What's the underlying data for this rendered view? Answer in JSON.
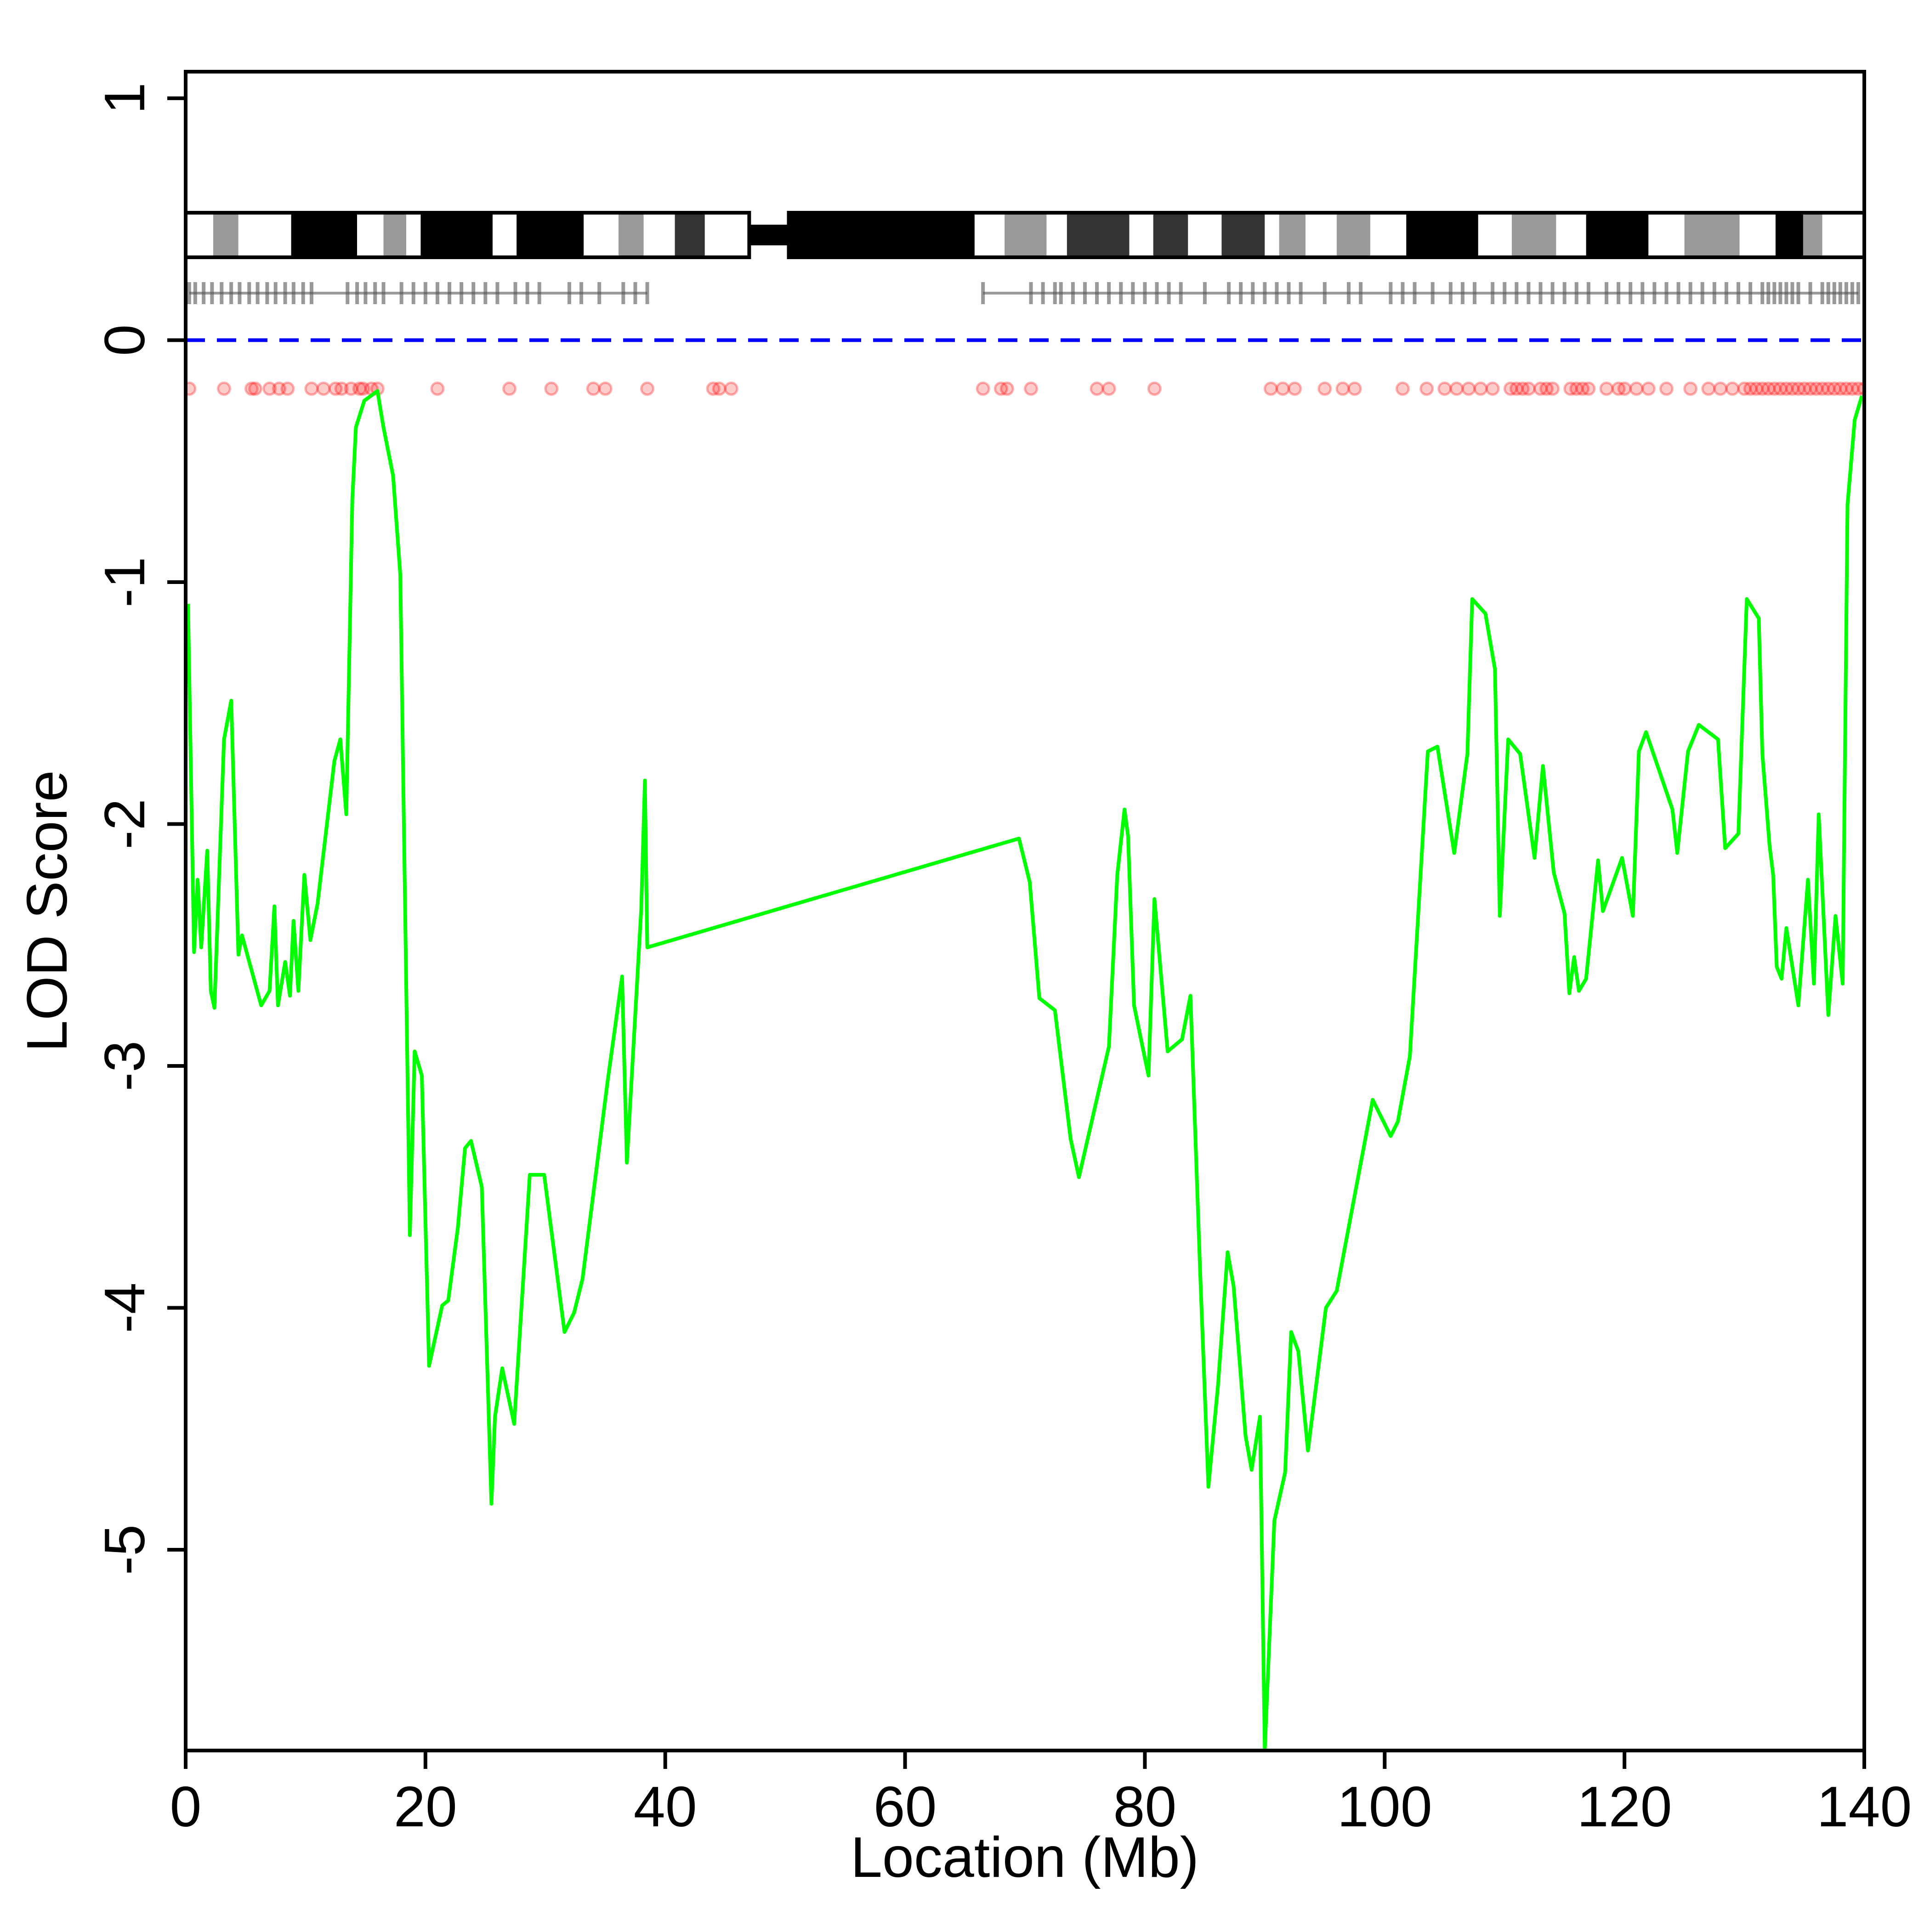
{
  "chart_data": {
    "type": "line",
    "x_label": "Location (Mb)",
    "y_label": "LOD Score",
    "xlim": [
      0,
      140
    ],
    "ylim": [
      -5.83,
      1.11
    ],
    "xticks": [
      0,
      20,
      40,
      60,
      80,
      100,
      120,
      140
    ],
    "yticks": [
      -5,
      -4,
      -3,
      -2,
      -1,
      0,
      1
    ],
    "hline": {
      "value": 0,
      "color": "#0000ff"
    },
    "series": [
      {
        "color": "#00ff00",
        "x": [
          0.2,
          0.7,
          1.0,
          1.3,
          1.8,
          2.1,
          2.4,
          3.2,
          3.8,
          4.4,
          4.7,
          6.3,
          7.0,
          7.4,
          7.7,
          8.3,
          8.7,
          9.0,
          9.4,
          9.9,
          10.4,
          11.0,
          12.4,
          12.9,
          13.4,
          13.9,
          14.2,
          14.9,
          16.0,
          16.5,
          17.3,
          17.9,
          18.7,
          19.1,
          19.7,
          20.3,
          21.4,
          21.9,
          22.7,
          23.3,
          23.8,
          24.7,
          25.5,
          25.8,
          26.4,
          27.4,
          28.7,
          29.9,
          31.6,
          32.4,
          33.1,
          35.2,
          36.4,
          36.8,
          38.0,
          38.3,
          38.5,
          69.5,
          70.4,
          71.2,
          72.5,
          73.8,
          74.5,
          77.0,
          77.7,
          78.3,
          78.6,
          79.1,
          80.3,
          80.8,
          81.9,
          83.1,
          83.8,
          84.6,
          85.3,
          86.1,
          86.9,
          87.4,
          88.4,
          88.9,
          89.6,
          90.0,
          90.8,
          91.7,
          92.2,
          92.8,
          93.6,
          95.1,
          96.0,
          99.0,
          100.5,
          101.1,
          102.1,
          103.6,
          104.4,
          105.8,
          106.9,
          107.3,
          108.4,
          109.2,
          109.6,
          110.3,
          111.3,
          112.5,
          113.2,
          114.1,
          115.0,
          115.4,
          115.8,
          116.2,
          116.8,
          117.8,
          118.2,
          119.8,
          120.7,
          121.2,
          121.8,
          124.0,
          124.4,
          125.3,
          126.2,
          127.8,
          128.4,
          129.5,
          130.2,
          131.2,
          131.5,
          132.1,
          132.4,
          132.7,
          133.1,
          133.5,
          134.5,
          135.3,
          135.8,
          136.2,
          137.0,
          137.6,
          138.2,
          138.6,
          139.2,
          139.8
        ],
        "values": [
          -1.09,
          -2.53,
          -2.23,
          -2.51,
          -2.11,
          -2.69,
          -2.76,
          -1.65,
          -1.49,
          -2.54,
          -2.46,
          -2.75,
          -2.69,
          -2.34,
          -2.75,
          -2.57,
          -2.71,
          -2.4,
          -2.69,
          -2.21,
          -2.48,
          -2.33,
          -1.74,
          -1.65,
          -1.96,
          -0.66,
          -0.36,
          -0.25,
          -0.21,
          -0.36,
          -0.56,
          -0.97,
          -3.7,
          -2.94,
          -3.04,
          -4.24,
          -3.99,
          -3.97,
          -3.67,
          -3.34,
          -3.31,
          -3.5,
          -4.81,
          -4.45,
          -4.25,
          -4.48,
          -3.45,
          -3.45,
          -4.1,
          -4.02,
          -3.88,
          -3.06,
          -2.63,
          -3.4,
          -2.35,
          -1.82,
          -2.51,
          -2.06,
          -2.24,
          -2.72,
          -2.77,
          -3.3,
          -3.46,
          -2.92,
          -2.21,
          -1.94,
          -2.05,
          -2.75,
          -3.04,
          -2.31,
          -2.94,
          -2.89,
          -2.71,
          -3.84,
          -4.74,
          -4.32,
          -3.77,
          -3.91,
          -4.53,
          -4.67,
          -4.45,
          -5.83,
          -4.88,
          -4.68,
          -4.1,
          -4.18,
          -4.59,
          -4.0,
          -3.93,
          -3.14,
          -3.29,
          -3.23,
          -2.96,
          -1.7,
          -1.68,
          -2.12,
          -1.71,
          -1.07,
          -1.13,
          -1.36,
          -2.38,
          -1.65,
          -1.71,
          -2.14,
          -1.76,
          -2.2,
          -2.37,
          -2.7,
          -2.55,
          -2.69,
          -2.64,
          -2.15,
          -2.36,
          -2.14,
          -2.38,
          -1.7,
          -1.62,
          -1.94,
          -2.12,
          -1.7,
          -1.59,
          -1.65,
          -2.1,
          -2.04,
          -1.07,
          -1.15,
          -1.71,
          -2.09,
          -2.21,
          -2.59,
          -2.64,
          -2.43,
          -2.75,
          -2.23,
          -2.66,
          -1.96,
          -2.79,
          -2.38,
          -2.66,
          -0.68,
          -0.33,
          -0.23
        ]
      }
    ],
    "bands": [
      {
        "start": 0,
        "end": 2.3,
        "color": "#ffffff"
      },
      {
        "start": 2.3,
        "end": 4.4,
        "color": "#999999"
      },
      {
        "start": 4.4,
        "end": 8.8,
        "color": "#ffffff"
      },
      {
        "start": 8.8,
        "end": 14.3,
        "color": "#000000"
      },
      {
        "start": 14.3,
        "end": 16.5,
        "color": "#ffffff"
      },
      {
        "start": 16.5,
        "end": 18.4,
        "color": "#999999"
      },
      {
        "start": 18.4,
        "end": 19.6,
        "color": "#ffffff"
      },
      {
        "start": 19.6,
        "end": 25.6,
        "color": "#000000"
      },
      {
        "start": 25.6,
        "end": 27.6,
        "color": "#ffffff"
      },
      {
        "start": 27.6,
        "end": 33.2,
        "color": "#000000"
      },
      {
        "start": 33.2,
        "end": 36.1,
        "color": "#ffffff"
      },
      {
        "start": 36.1,
        "end": 38.2,
        "color": "#999999"
      },
      {
        "start": 38.2,
        "end": 40.8,
        "color": "#ffffff"
      },
      {
        "start": 40.8,
        "end": 43.3,
        "color": "#333333"
      },
      {
        "start": 43.3,
        "end": 47.0,
        "color": "#ffffff"
      },
      {
        "start": 50.3,
        "end": 65.8,
        "color": "#000000"
      },
      {
        "start": 65.8,
        "end": 68.3,
        "color": "#ffffff"
      },
      {
        "start": 68.3,
        "end": 71.8,
        "color": "#999999"
      },
      {
        "start": 71.8,
        "end": 73.5,
        "color": "#ffffff"
      },
      {
        "start": 73.5,
        "end": 78.7,
        "color": "#333333"
      },
      {
        "start": 78.7,
        "end": 80.7,
        "color": "#ffffff"
      },
      {
        "start": 80.7,
        "end": 83.6,
        "color": "#333333"
      },
      {
        "start": 83.6,
        "end": 86.4,
        "color": "#ffffff"
      },
      {
        "start": 86.4,
        "end": 90.0,
        "color": "#333333"
      },
      {
        "start": 90.0,
        "end": 91.2,
        "color": "#ffffff"
      },
      {
        "start": 91.2,
        "end": 93.4,
        "color": "#999999"
      },
      {
        "start": 93.4,
        "end": 96.0,
        "color": "#ffffff"
      },
      {
        "start": 96.0,
        "end": 98.8,
        "color": "#999999"
      },
      {
        "start": 98.8,
        "end": 101.8,
        "color": "#ffffff"
      },
      {
        "start": 101.8,
        "end": 107.8,
        "color": "#000000"
      },
      {
        "start": 107.8,
        "end": 110.6,
        "color": "#ffffff"
      },
      {
        "start": 110.6,
        "end": 114.3,
        "color": "#999999"
      },
      {
        "start": 114.3,
        "end": 116.8,
        "color": "#ffffff"
      },
      {
        "start": 116.8,
        "end": 122.0,
        "color": "#000000"
      },
      {
        "start": 122.0,
        "end": 125.0,
        "color": "#ffffff"
      },
      {
        "start": 125.0,
        "end": 129.6,
        "color": "#999999"
      },
      {
        "start": 129.6,
        "end": 132.6,
        "color": "#ffffff"
      },
      {
        "start": 132.6,
        "end": 134.9,
        "color": "#000000"
      },
      {
        "start": 134.9,
        "end": 136.5,
        "color": "#999999"
      },
      {
        "start": 136.5,
        "end": 140.0,
        "color": "#ffffff"
      }
    ],
    "centromere": [
      47.0,
      50.3
    ],
    "markers": [
      0.3,
      0.8,
      1.5,
      2.2,
      3.0,
      3.8,
      4.5,
      5.3,
      6.0,
      6.8,
      7.5,
      8.3,
      9.0,
      9.8,
      10.5,
      13.5,
      14.3,
      15.0,
      15.8,
      16.5,
      18.0,
      19.0,
      20.0,
      21.0,
      22.0,
      23.0,
      24.0,
      25.0,
      26.0,
      27.5,
      28.5,
      29.5,
      32.0,
      33.0,
      34.5,
      36.5,
      37.5,
      38.5,
      66.5,
      70.5,
      71.5,
      72.5,
      73.0,
      74.0,
      75.0,
      76.0,
      77.0,
      78.0,
      79.0,
      80.0,
      81.0,
      82.0,
      83.0,
      85.0,
      87.0,
      88.0,
      89.0,
      90.0,
      91.0,
      92.0,
      93.0,
      95.0,
      97.0,
      98.0,
      100.5,
      101.5,
      102.5,
      104.0,
      105.5,
      106.5,
      107.5,
      109.0,
      110.0,
      111.0,
      112.0,
      113.0,
      114.0,
      115.0,
      116.0,
      117.0,
      118.5,
      119.5,
      120.5,
      121.5,
      122.5,
      123.5,
      124.5,
      125.5,
      126.5,
      127.5,
      128.5,
      129.5,
      130.5,
      131.5,
      132.0,
      132.5,
      133.0,
      133.5,
      134.0,
      134.5,
      135.5,
      136.5,
      137.0,
      137.5,
      138.0,
      138.5,
      139.0,
      139.5
    ],
    "marker_color": "#555555",
    "dots": [
      0.3,
      3.2,
      5.5,
      5.8,
      7.0,
      7.8,
      8.5,
      10.5,
      11.5,
      12.5,
      13.0,
      13.8,
      14.5,
      14.8,
      15.5,
      16.0,
      21.0,
      27.0,
      30.5,
      34.0,
      35.0,
      38.5,
      44.0,
      44.5,
      45.5,
      66.5,
      68.0,
      68.5,
      70.5,
      76.0,
      77.0,
      80.8,
      90.5,
      91.5,
      92.5,
      95.0,
      96.5,
      97.5,
      101.5,
      103.5,
      105.0,
      106.0,
      107.0,
      108.0,
      109.0,
      110.5,
      111.0,
      111.5,
      112.0,
      113.0,
      113.5,
      114.0,
      115.5,
      116.0,
      116.5,
      117.0,
      118.5,
      119.5,
      120.0,
      121.0,
      122.0,
      123.5,
      125.5,
      127.0,
      128.0,
      129.0,
      130.0,
      130.5,
      131.0,
      131.5,
      132.0,
      132.5,
      133.0,
      133.5,
      134.0,
      134.5,
      135.0,
      135.5,
      136.0,
      136.5,
      137.0,
      137.5,
      138.0,
      138.5,
      139.0,
      139.5,
      140.0
    ],
    "dot_color": "#ff0000"
  }
}
